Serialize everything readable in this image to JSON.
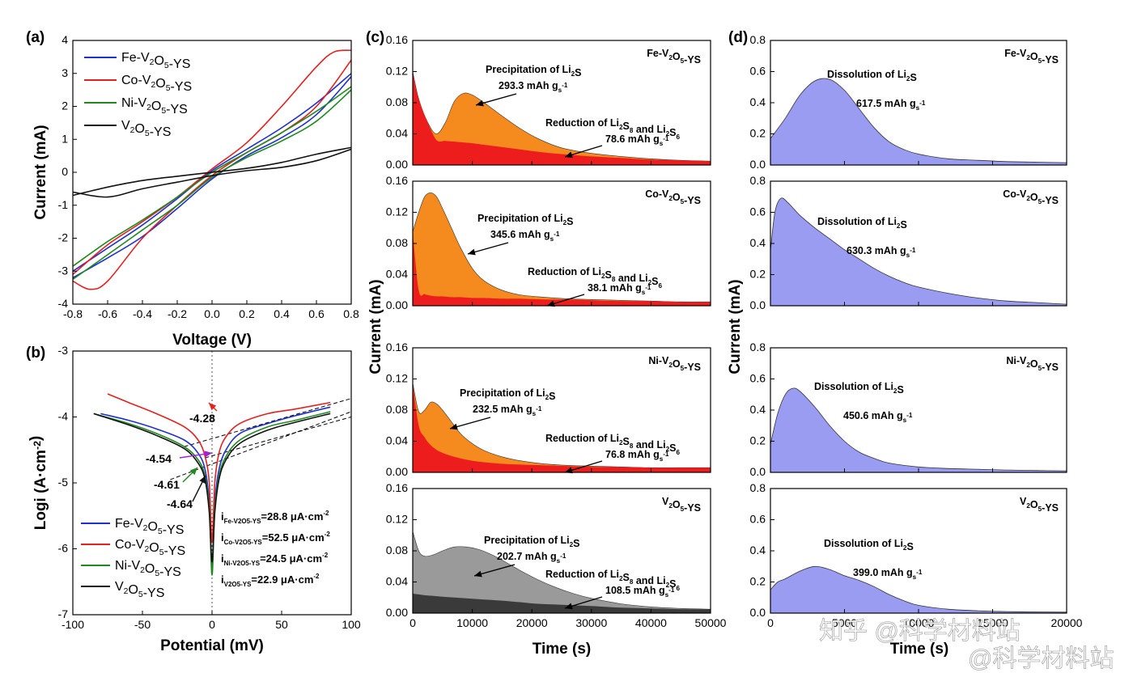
{
  "watermark": {
    "line1": "知乎 @科学材料站",
    "line2": "@科学材料站"
  },
  "colors": {
    "blue": "#1f2fd0",
    "red": "#e52020",
    "green": "#1e8a1e",
    "black": "#111111",
    "orange": "#f58a1e",
    "red_fill": "#ee1d1d",
    "violet": "#9a9cf2",
    "gray_light": "#9a9a9a",
    "gray_dark": "#3a3a3a"
  },
  "chart_data": [
    {
      "panel": "(a)",
      "type": "line",
      "xlabel": "Voltage (V)",
      "ylabel": "Current (mA)",
      "xlim": [
        -0.8,
        0.8
      ],
      "ylim": [
        -4,
        4
      ],
      "xticks": [
        "-0.8",
        "-0.6",
        "-0.4",
        "-0.2",
        "0.0",
        "0.2",
        "0.4",
        "0.6",
        "0.8"
      ],
      "yticks": [
        "-4",
        "-3",
        "-2",
        "-1",
        "0",
        "1",
        "2",
        "3",
        "4"
      ],
      "legend": [
        "Fe-V2O5-YS",
        "Co-V2O5-YS",
        "Ni-V2O5-YS",
        "V2O5-YS"
      ],
      "series": [
        {
          "name": "Fe-V2O5-YS",
          "color": "blue",
          "upper": {
            "x": [
              -0.8,
              -0.6,
              -0.4,
              -0.2,
              0,
              0.2,
              0.4,
              0.6,
              0.8
            ],
            "y": [
              -3.0,
              -2.3,
              -1.6,
              -0.8,
              0.05,
              0.7,
              1.35,
              2.1,
              3.0
            ]
          },
          "lower": {
            "x": [
              -0.8,
              -0.6,
              -0.4,
              -0.2,
              0,
              0.2,
              0.4,
              0.6,
              0.8
            ],
            "y": [
              -3.2,
              -2.6,
              -1.95,
              -1.1,
              -0.2,
              0.5,
              1.05,
              1.75,
              2.9
            ]
          }
        },
        {
          "name": "Co-V2O5-YS",
          "color": "red",
          "upper": {
            "x": [
              -0.8,
              -0.6,
              -0.4,
              -0.2,
              0,
              0.2,
              0.4,
              0.6,
              0.7,
              0.8
            ],
            "y": [
              -3.1,
              -2.2,
              -1.5,
              -0.75,
              0.1,
              0.9,
              2.0,
              3.2,
              3.65,
              3.7
            ]
          },
          "lower": {
            "x": [
              -0.8,
              -0.7,
              -0.6,
              -0.4,
              -0.2,
              0,
              0.2,
              0.4,
              0.6,
              0.8
            ],
            "y": [
              -3.3,
              -3.55,
              -3.3,
              -2.0,
              -1.0,
              -0.1,
              0.6,
              1.2,
              2.0,
              3.4
            ]
          }
        },
        {
          "name": "Ni-V2O5-YS",
          "color": "green",
          "upper": {
            "x": [
              -0.8,
              -0.6,
              -0.4,
              -0.2,
              0,
              0.2,
              0.4,
              0.6,
              0.8
            ],
            "y": [
              -2.85,
              -2.1,
              -1.45,
              -0.75,
              0.0,
              0.6,
              1.2,
              1.85,
              2.6
            ]
          },
          "lower": {
            "x": [
              -0.8,
              -0.6,
              -0.4,
              -0.2,
              0,
              0.2,
              0.4,
              0.6,
              0.8
            ],
            "y": [
              -3.25,
              -2.5,
              -1.75,
              -1.0,
              -0.15,
              0.45,
              0.95,
              1.55,
              2.5
            ]
          }
        },
        {
          "name": "V2O5-YS",
          "color": "black",
          "upper": {
            "x": [
              -0.8,
              -0.6,
              -0.4,
              -0.2,
              0,
              0.2,
              0.4,
              0.6,
              0.8
            ],
            "y": [
              -0.7,
              -0.45,
              -0.25,
              -0.12,
              0.0,
              0.12,
              0.3,
              0.55,
              0.75
            ]
          },
          "lower": {
            "x": [
              -0.8,
              -0.6,
              -0.4,
              -0.2,
              0,
              0.2,
              0.4,
              0.6,
              0.8
            ],
            "y": [
              -0.6,
              -0.75,
              -0.5,
              -0.3,
              -0.1,
              0.05,
              0.15,
              0.35,
              0.7
            ]
          }
        }
      ]
    },
    {
      "panel": "(b)",
      "type": "line",
      "xlabel": "Potential (mV)",
      "ylabel": "Logi (A·cm-2)",
      "xlim": [
        -100,
        100
      ],
      "ylim": [
        -7,
        -3
      ],
      "xticks": [
        "-100",
        "-50",
        "0",
        "50",
        "100"
      ],
      "yticks": [
        "-7",
        "-6",
        "-5",
        "-4",
        "-3"
      ],
      "legend": [
        "Fe-V2O5-YS",
        "Co-V2O5-YS",
        "Ni-V2O5-YS",
        "V2O5-YS"
      ],
      "annotations": [
        "-4.28",
        "-4.54",
        "-4.61",
        "-4.64"
      ],
      "currents": [
        {
          "label": "Fe-V2O5-YS",
          "value": "=28.8 μA·cm-2"
        },
        {
          "label": "Co-V2O5-YS",
          "value": "=52.5 μA·cm-2"
        },
        {
          "label": "Ni-V2O5-YS",
          "value": "=24.5 μA·cm-2"
        },
        {
          "label": "V2O5-YS",
          "value": "=22.9 μA·cm-2"
        }
      ],
      "series": [
        {
          "name": "Fe-V2O5-YS",
          "color": "blue",
          "x": [
            -80,
            -60,
            -40,
            -20,
            -10,
            -5,
            -2,
            0,
            2,
            5,
            10,
            20,
            40,
            60,
            85
          ],
          "y": [
            -3.95,
            -4.05,
            -4.18,
            -4.35,
            -4.55,
            -4.8,
            -5.3,
            -6.3,
            -5.3,
            -4.8,
            -4.5,
            -4.25,
            -4.1,
            -3.98,
            -3.85
          ]
        },
        {
          "name": "Co-V2O5-YS",
          "color": "red",
          "x": [
            -75,
            -60,
            -40,
            -20,
            -10,
            -5,
            -2,
            0,
            2,
            5,
            10,
            20,
            40,
            60,
            85
          ],
          "y": [
            -3.65,
            -3.78,
            -3.95,
            -4.15,
            -4.35,
            -4.6,
            -5.0,
            -5.9,
            -5.0,
            -4.55,
            -4.3,
            -4.1,
            -3.95,
            -3.88,
            -3.78
          ]
        },
        {
          "name": "Ni-V2O5-YS",
          "color": "green",
          "x": [
            -85,
            -60,
            -40,
            -20,
            -10,
            -5,
            -2,
            0,
            2,
            5,
            10,
            20,
            40,
            60,
            85
          ],
          "y": [
            -3.95,
            -4.1,
            -4.25,
            -4.45,
            -4.65,
            -4.9,
            -5.4,
            -6.4,
            -5.4,
            -4.9,
            -4.6,
            -4.35,
            -4.15,
            -4.05,
            -3.92
          ]
        },
        {
          "name": "V2O5-YS",
          "color": "black",
          "x": [
            -85,
            -60,
            -40,
            -20,
            -10,
            -5,
            -2,
            0,
            2,
            5,
            10,
            20,
            40,
            60,
            85
          ],
          "y": [
            -3.95,
            -4.12,
            -4.28,
            -4.48,
            -4.7,
            -4.95,
            -5.45,
            -6.2,
            -5.45,
            -4.95,
            -4.65,
            -4.4,
            -4.2,
            -4.08,
            -3.95
          ]
        }
      ]
    },
    {
      "panel": "(c)",
      "type": "area",
      "xlabel": "Time (s)",
      "ylabel": "Current (mA)",
      "xlim": [
        0,
        50000
      ],
      "ylim": [
        0,
        0.16
      ],
      "xticks": [
        "0",
        "10000",
        "20000",
        "30000",
        "40000",
        "50000"
      ],
      "yticks": [
        "0.00",
        "0.04",
        "0.08",
        "0.12",
        "0.16"
      ],
      "subplots": [
        {
          "title": "Fe-V2O5-YS",
          "precip": "Precipitation of Li2S",
          "precip_cap": "293.3 mAh gs-1",
          "red": "Reduction of Li2S8 and Li2S6",
          "red_cap": "78.6 mAh gs-1",
          "x": [
            0,
            1000,
            2500,
            4000,
            5500,
            7000,
            8500,
            10000,
            12000,
            15000,
            18000,
            21000,
            25000,
            30000,
            35000,
            40000,
            45000,
            50000
          ],
          "total": [
            0.12,
            0.085,
            0.055,
            0.04,
            0.055,
            0.082,
            0.092,
            0.09,
            0.08,
            0.063,
            0.047,
            0.034,
            0.022,
            0.015,
            0.011,
            0.008,
            0.006,
            0.005
          ],
          "base": [
            0.12,
            0.085,
            0.055,
            0.032,
            0.031,
            0.03,
            0.029,
            0.028,
            0.026,
            0.023,
            0.02,
            0.017,
            0.014,
            0.011,
            0.009,
            0.007,
            0.006,
            0.005
          ]
        },
        {
          "title": "Co-V2O5-YS",
          "precip": "Precipitation of Li2S",
          "precip_cap": "345.6 mAh gs-1",
          "red": "Reduction of Li2S8 and Li2S6",
          "red_cap": "38.1 mAh gs-1",
          "x": [
            0,
            1000,
            2000,
            3000,
            4000,
            5000,
            6500,
            8000,
            10000,
            12000,
            15000,
            18000,
            22000,
            26000,
            30000,
            35000,
            40000,
            45000,
            50000
          ],
          "total": [
            0.095,
            0.12,
            0.14,
            0.145,
            0.14,
            0.125,
            0.1,
            0.075,
            0.048,
            0.032,
            0.02,
            0.014,
            0.011,
            0.009,
            0.008,
            0.007,
            0.006,
            0.005,
            0.005
          ],
          "base": [
            0.095,
            0.02,
            0.015,
            0.013,
            0.012,
            0.012,
            0.011,
            0.011,
            0.01,
            0.01,
            0.009,
            0.009,
            0.008,
            0.008,
            0.007,
            0.006,
            0.006,
            0.005,
            0.005
          ]
        },
        {
          "title": "Ni-V2O5-YS",
          "precip": "Precipitation of Li2S",
          "precip_cap": "232.5 mAh gs-1",
          "red": "Reduction of Li2S8 and Li2S6",
          "red_cap": "76.8 mAh gs-1",
          "x": [
            0,
            1000,
            2000,
            3000,
            4000,
            5000,
            6500,
            8000,
            10000,
            12000,
            15000,
            18000,
            22000,
            26000,
            30000,
            35000,
            40000,
            45000,
            50000
          ],
          "total": [
            0.115,
            0.078,
            0.08,
            0.09,
            0.088,
            0.08,
            0.065,
            0.05,
            0.037,
            0.028,
            0.02,
            0.015,
            0.011,
            0.009,
            0.008,
            0.007,
            0.006,
            0.006,
            0.006
          ],
          "base": [
            0.115,
            0.06,
            0.045,
            0.035,
            0.029,
            0.025,
            0.021,
            0.018,
            0.015,
            0.013,
            0.011,
            0.01,
            0.009,
            0.008,
            0.007,
            0.007,
            0.006,
            0.006,
            0.006
          ]
        },
        {
          "title": "V2O5-YS",
          "precip": "Precipitation of Li2S",
          "precip_cap": "202.7 mAh gs-1",
          "red": "Reduction of Li2S8 and Li2S6",
          "red_cap": "108.5 mAh gs-1",
          "gray": true,
          "x": [
            0,
            1000,
            2000,
            3500,
            5000,
            7000,
            9000,
            11000,
            13000,
            15000,
            18000,
            21000,
            24000,
            27000,
            30000,
            35000,
            40000,
            45000,
            50000
          ],
          "total": [
            0.105,
            0.08,
            0.073,
            0.075,
            0.08,
            0.085,
            0.085,
            0.082,
            0.076,
            0.068,
            0.055,
            0.043,
            0.033,
            0.025,
            0.019,
            0.012,
            0.008,
            0.006,
            0.005
          ],
          "base": [
            0.025,
            0.024,
            0.023,
            0.022,
            0.021,
            0.02,
            0.019,
            0.018,
            0.017,
            0.016,
            0.014,
            0.012,
            0.011,
            0.01,
            0.009,
            0.007,
            0.006,
            0.005,
            0.005
          ]
        }
      ]
    },
    {
      "panel": "(d)",
      "type": "area",
      "xlabel": "Time (s)",
      "ylabel": "Current (mA)",
      "xlim": [
        0,
        20000
      ],
      "ylim": [
        0,
        0.8
      ],
      "xticks": [
        "0",
        "5000",
        "10000",
        "15000",
        "20000"
      ],
      "yticks": [
        "0.0",
        "0.2",
        "0.4",
        "0.6",
        "0.8"
      ],
      "subplots": [
        {
          "title": "Fe-V2O5-YS",
          "label": "Dissolution of Li2S",
          "cap": "617.5 mAh gs-1",
          "x": [
            0,
            1000,
            2000,
            3000,
            4000,
            5000,
            6000,
            7000,
            8000,
            9000,
            10000,
            12000,
            14000,
            16000,
            18000,
            20000
          ],
          "y": [
            0.17,
            0.3,
            0.45,
            0.54,
            0.55,
            0.48,
            0.36,
            0.24,
            0.15,
            0.1,
            0.07,
            0.04,
            0.03,
            0.022,
            0.018,
            0.015
          ]
        },
        {
          "title": "Co-V2O5-YS",
          "label": "Dissolution of Li2S",
          "cap": "630.3 mAh gs-1",
          "x": [
            0,
            300,
            700,
            1200,
            2000,
            3000,
            4000,
            5000,
            6000,
            7000,
            8000,
            9000,
            10000,
            12000,
            14000,
            16000,
            18000,
            20000
          ],
          "y": [
            0.35,
            0.6,
            0.69,
            0.66,
            0.58,
            0.5,
            0.43,
            0.36,
            0.3,
            0.24,
            0.19,
            0.15,
            0.12,
            0.08,
            0.05,
            0.03,
            0.02,
            0.01
          ]
        },
        {
          "title": "Ni-V2O5-YS",
          "label": "Dissolution of Li2S",
          "cap": "450.6 mAh gs-1",
          "x": [
            0,
            500,
            1000,
            1500,
            2000,
            3000,
            4000,
            5000,
            6000,
            7000,
            8000,
            10000,
            12000,
            14000,
            16000,
            18000,
            20000
          ],
          "y": [
            0.18,
            0.38,
            0.5,
            0.54,
            0.52,
            0.42,
            0.3,
            0.2,
            0.13,
            0.09,
            0.06,
            0.035,
            0.025,
            0.02,
            0.015,
            0.012,
            0.01
          ]
        },
        {
          "title": "V2O5-YS",
          "label": "Dissolution of Li2S",
          "cap": "399.0 mAh gs-1",
          "x": [
            0,
            500,
            1000,
            2000,
            3000,
            4000,
            5000,
            6000,
            7000,
            8000,
            9000,
            10000,
            12000,
            14000,
            16000,
            18000,
            20000
          ],
          "y": [
            0.15,
            0.2,
            0.22,
            0.27,
            0.3,
            0.28,
            0.24,
            0.21,
            0.17,
            0.12,
            0.08,
            0.05,
            0.025,
            0.015,
            0.01,
            0.008,
            0.006
          ]
        }
      ]
    }
  ]
}
